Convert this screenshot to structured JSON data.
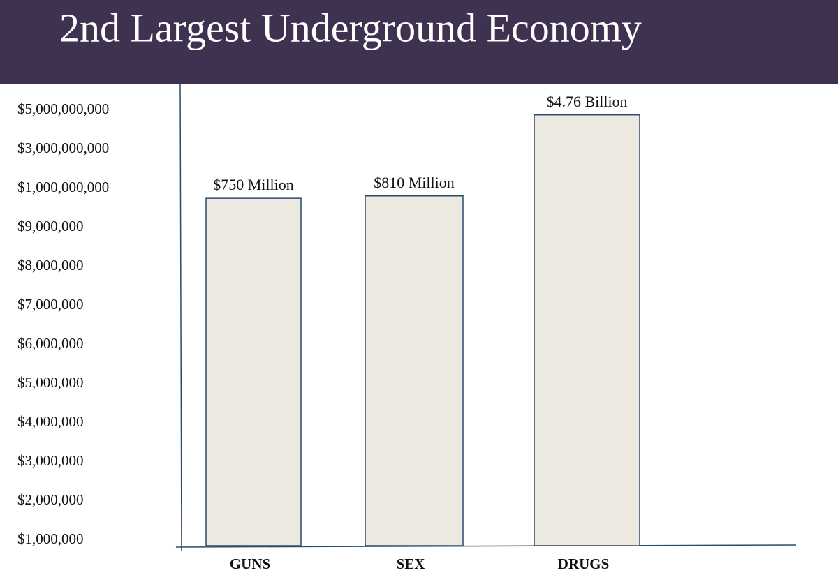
{
  "chart_data": {
    "type": "bar",
    "title": "2nd Largest Underground Economy",
    "categories": [
      "GUNS",
      "SEX",
      "DRUGS"
    ],
    "values": [
      750000000,
      810000000,
      4760000000
    ],
    "value_labels": [
      "$750 Million",
      "$810 Million",
      "$4.76 Billion"
    ],
    "color": "#ece9e0",
    "ylim": [
      0,
      5000000000
    ],
    "yticks": [
      {
        "value": 1000000,
        "label": "$1,000,000"
      },
      {
        "value": 2000000,
        "label": "$2,000,000"
      },
      {
        "value": 3000000,
        "label": "$3,000,000"
      },
      {
        "value": 4000000,
        "label": "$4,000,000"
      },
      {
        "value": 5000000,
        "label": "$5,000,000"
      },
      {
        "value": 6000000,
        "label": "$6,000,000"
      },
      {
        "value": 7000000,
        "label": "$7,000,000"
      },
      {
        "value": 8000000,
        "label": "$8,000,000"
      },
      {
        "value": 9000000,
        "label": "$9,000,000"
      },
      {
        "value": 1000000000,
        "label": "$1,000,000,000"
      },
      {
        "value": 3000000000,
        "label": "$3,000,000,000"
      },
      {
        "value": 5000000000,
        "label": "$5,000,000,000"
      }
    ],
    "grid": false
  }
}
